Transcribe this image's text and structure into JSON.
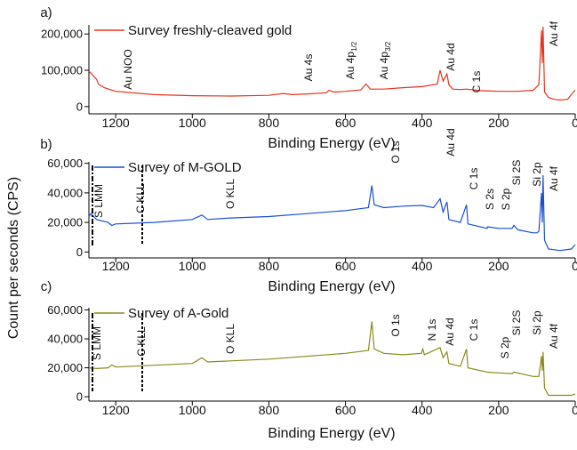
{
  "ylabel": "Count per seconds (CPS)",
  "chart_data": [
    {
      "type": "line",
      "label": "a)",
      "xlabel": "Binding Energy (eV)",
      "xlim": [
        1270,
        0
      ],
      "xticks": [
        1200,
        1000,
        800,
        600,
        400,
        200,
        0
      ],
      "ylim": [
        -20000,
        225000
      ],
      "yticks": [
        0,
        {
          "value": 100000,
          "label": "100,000"
        },
        {
          "value": 200000,
          "label": "200,000"
        }
      ],
      "x": [
        1270,
        1250,
        1245,
        1230,
        1200,
        1100,
        1000,
        900,
        800,
        762,
        740,
        700,
        650,
        643,
        630,
        600,
        560,
        546,
        535,
        500,
        450,
        400,
        360,
        353,
        345,
        335,
        330,
        320,
        300,
        284,
        250,
        200,
        150,
        110,
        95,
        88,
        86,
        84,
        80,
        70,
        55,
        40,
        20,
        5,
        0
      ],
      "series": [
        {
          "name": "Survey freshly-cleaved gold",
          "color": "#e8331e",
          "values": [
            98000,
            75000,
            62000,
            52000,
            42000,
            33000,
            30000,
            29000,
            31000,
            36000,
            33000,
            35000,
            38000,
            45000,
            40000,
            42000,
            46000,
            62000,
            48000,
            48000,
            52000,
            55000,
            62000,
            100000,
            70000,
            90000,
            60000,
            48000,
            47000,
            48000,
            44000,
            42000,
            42000,
            45000,
            60000,
            210000,
            120000,
            220000,
            40000,
            25000,
            20000,
            18000,
            20000,
            40000,
            45000
          ]
        }
      ],
      "annotations": [
        {
          "text": "Au NOO"
        },
        {
          "text": "Au 4s"
        },
        {
          "text": "Au 4p",
          "sub": "1/2"
        },
        {
          "text": "Au 4p",
          "sub": "3/2"
        },
        {
          "text": "Au 4d"
        },
        {
          "text": "C 1s"
        },
        {
          "text": "Au 4f"
        }
      ]
    },
    {
      "type": "line",
      "label": "b)",
      "xlabel": "Binding Energy (eV)",
      "xlim": [
        1270,
        0
      ],
      "xticks": [
        1200,
        1000,
        800,
        600,
        400,
        200,
        0
      ],
      "ylim": [
        -4000,
        61000
      ],
      "yticks": [
        0,
        {
          "value": 20000,
          "label": "20,000"
        },
        {
          "value": 40000,
          "label": "40,000"
        },
        {
          "value": 60000,
          "label": "60,000"
        }
      ],
      "x": [
        1270,
        1265,
        1250,
        1220,
        1210,
        1200,
        1100,
        1000,
        975,
        960,
        900,
        800,
        700,
        600,
        540,
        531,
        525,
        500,
        450,
        400,
        370,
        353,
        345,
        335,
        330,
        300,
        284,
        280,
        230,
        229,
        200,
        165,
        160,
        150,
        110,
        100,
        95,
        88,
        86,
        84,
        80,
        70,
        40,
        10,
        0
      ],
      "series": [
        {
          "name": "Survey of M-GOLD",
          "color": "#1a4fd6",
          "values": [
            24000,
            26000,
            22000,
            20000,
            18000,
            19000,
            20000,
            22000,
            25000,
            22000,
            23000,
            24000,
            26000,
            28000,
            30000,
            45000,
            32000,
            30000,
            31000,
            31500,
            30000,
            36000,
            27000,
            34000,
            22000,
            20000,
            32000,
            19000,
            16000,
            17000,
            16000,
            16000,
            18000,
            15000,
            13000,
            13000,
            14000,
            40000,
            20000,
            52000,
            8000,
            2000,
            1000,
            2000,
            5000
          ]
        }
      ],
      "annotations": [
        {
          "text": "S LMM"
        },
        {
          "text": "C KLL"
        },
        {
          "text": "O KLL"
        },
        {
          "text": "O 1s"
        },
        {
          "text": "Au 4d"
        },
        {
          "text": "C 1s"
        },
        {
          "text": "S 2s"
        },
        {
          "text": "S 2p"
        },
        {
          "text": "Si 2S"
        },
        {
          "text": "Si 2p"
        },
        {
          "text": "Au 4f"
        }
      ]
    },
    {
      "type": "line",
      "label": "c)",
      "xlabel": "Binding Energy (eV)",
      "xlim": [
        1270,
        0
      ],
      "xticks": [
        1200,
        1000,
        800,
        600,
        400,
        200,
        0
      ],
      "ylim": [
        -3000,
        61500
      ],
      "yticks": [
        0,
        {
          "value": 20000,
          "label": "20,000"
        },
        {
          "value": 40000,
          "label": "40,000"
        },
        {
          "value": 60000,
          "label": "60,000"
        }
      ],
      "x": [
        1270,
        1250,
        1220,
        1210,
        1200,
        1000,
        975,
        960,
        800,
        600,
        540,
        531,
        525,
        500,
        450,
        402,
        398,
        394,
        353,
        345,
        335,
        330,
        300,
        284,
        280,
        230,
        200,
        165,
        160,
        110,
        95,
        88,
        86,
        84,
        80,
        70,
        40,
        10,
        0
      ],
      "series": [
        {
          "name": "Survey of A-Gold",
          "color": "#8a8a1a",
          "values": [
            20000,
            19500,
            20000,
            22000,
            20500,
            23000,
            27000,
            24000,
            26000,
            30000,
            32000,
            52000,
            33000,
            30000,
            29000,
            30000,
            33000,
            29000,
            34000,
            27000,
            31000,
            23000,
            21000,
            33000,
            20000,
            17000,
            16500,
            16000,
            17000,
            14000,
            14000,
            28000,
            18000,
            31000,
            6000,
            1000,
            1000,
            1000,
            2000
          ]
        }
      ],
      "annotations": [
        {
          "text": "S LMM"
        },
        {
          "text": "C KLL"
        },
        {
          "text": "O KLL"
        },
        {
          "text": "O 1s"
        },
        {
          "text": "N 1s"
        },
        {
          "text": "Au 4d"
        },
        {
          "text": "C 1s"
        },
        {
          "text": "S 2p"
        },
        {
          "text": "Si 2S"
        },
        {
          "text": "Si 2p"
        },
        {
          "text": "Au 4f"
        }
      ]
    }
  ]
}
